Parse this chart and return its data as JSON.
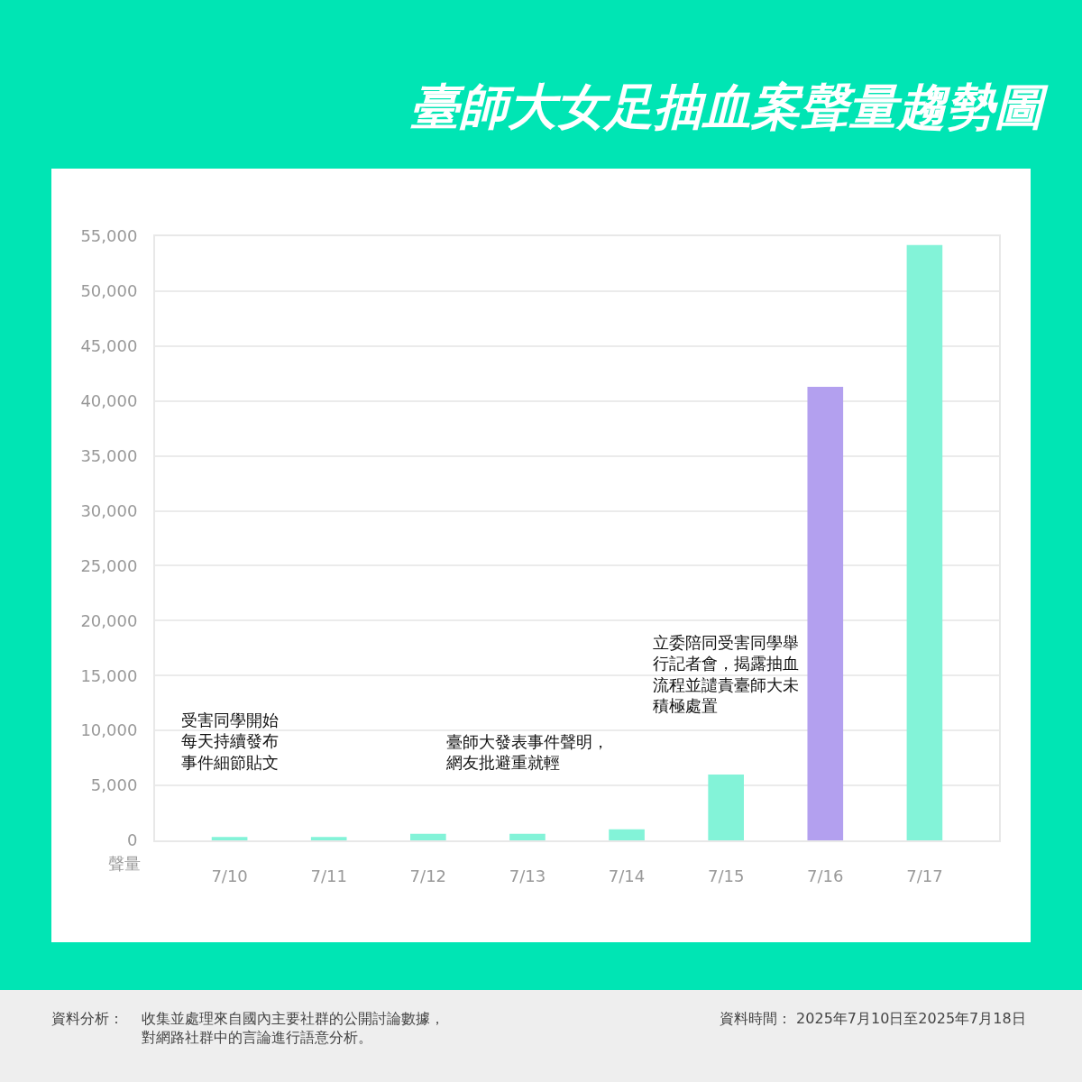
{
  "chart_data": {
    "type": "bar",
    "title": "臺師大女足抽血案聲量趨勢圖",
    "ylabel": "聲量",
    "categories": [
      "7/10",
      "7/11",
      "7/12",
      "7/13",
      "7/14",
      "7/15",
      "7/16",
      "7/17"
    ],
    "values": [
      300,
      300,
      600,
      600,
      1000,
      6000,
      41300,
      54200
    ],
    "colors": [
      "#83f3d8",
      "#83f3d8",
      "#83f3d8",
      "#83f3d8",
      "#83f3d8",
      "#83f3d8",
      "#b3a0ef",
      "#83f3d8"
    ],
    "ylim": [
      0,
      55000
    ],
    "yticks": [
      {
        "value": 0,
        "label": "0"
      },
      {
        "value": 5000,
        "label": "5,000"
      },
      {
        "value": 10000,
        "label": "10,000"
      },
      {
        "value": 15000,
        "label": "15,000"
      },
      {
        "value": 20000,
        "label": "20,000"
      },
      {
        "value": 25000,
        "label": "25,000"
      },
      {
        "value": 30000,
        "label": "30,000"
      },
      {
        "value": 35000,
        "label": "35,000"
      },
      {
        "value": 40000,
        "label": "40,000"
      },
      {
        "value": 45000,
        "label": "45,000"
      },
      {
        "value": 50000,
        "label": "50,000"
      },
      {
        "value": 55000,
        "label": "55,000"
      }
    ],
    "grid": "y",
    "legend": false,
    "annotations": [
      "受害同學開始每天持續發布事件細節貼文",
      "臺師大發表事件聲明，網友批避重就輕",
      "立委陪同受害同學舉行記者會，揭露抽血流程並譴責臺師大未積極處置",
      "資料分析：",
      "收集並處理來自國內主要社群的公開討論數據，對網路社群中的言論進行語意分析。",
      "資料時間： 2025年7月10日至2025年7月18日"
    ]
  }
}
